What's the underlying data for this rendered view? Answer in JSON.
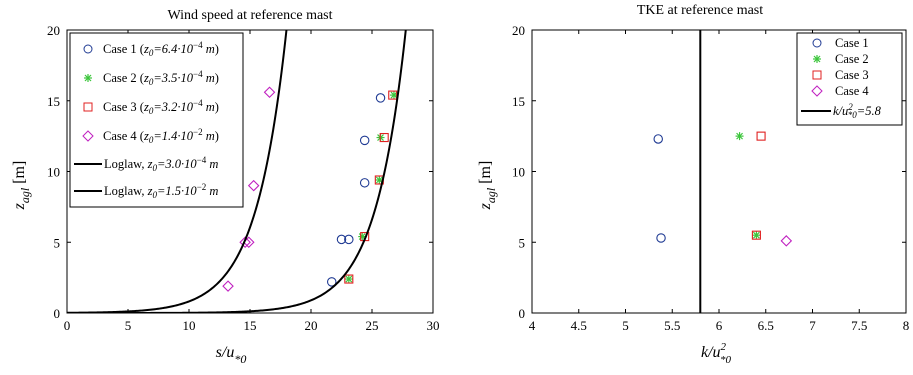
{
  "chart_data": [
    {
      "type": "scatter",
      "title": "Wind speed at reference mast",
      "xlabel": "s/u*0",
      "ylabel": "z_agl [m]",
      "xlim": [
        0,
        30
      ],
      "ylim": [
        0,
        20
      ],
      "xticks": [
        "0",
        "5",
        "10",
        "15",
        "20",
        "25",
        "30"
      ],
      "yticks": [
        "0",
        "5",
        "10",
        "15",
        "20"
      ],
      "grid": false,
      "legend_position": "top-left",
      "series": [
        {
          "name": "Case 1",
          "legend_text": "Case 1 (z0=6.4·10^-4 m)",
          "marker": "circle",
          "color": "#1f3a93",
          "points": [
            [
              21.7,
              2.2
            ],
            [
              22.5,
              5.2
            ],
            [
              23.1,
              5.2
            ],
            [
              24.4,
              9.2
            ],
            [
              24.4,
              12.2
            ],
            [
              25.7,
              15.2
            ]
          ]
        },
        {
          "name": "Case 2",
          "legend_text": "Case 2 (z0=3.5·10^-4 m)",
          "marker": "asterisk",
          "color": "#3cc63c",
          "points": [
            [
              23.1,
              2.4
            ],
            [
              24.2,
              5.4
            ],
            [
              25.6,
              9.4
            ],
            [
              25.7,
              12.4
            ],
            [
              26.8,
              15.4
            ]
          ]
        },
        {
          "name": "Case 3",
          "legend_text": "Case 3 (z0=3.2·10^-4 m)",
          "marker": "square",
          "color": "#e02020",
          "points": [
            [
              23.1,
              2.4
            ],
            [
              24.4,
              5.4
            ],
            [
              25.6,
              9.4
            ],
            [
              26.0,
              12.4
            ],
            [
              26.7,
              15.4
            ]
          ]
        },
        {
          "name": "Case 4",
          "legend_text": "Case 4 (z0=1.4·10^-2 m)",
          "marker": "diamond",
          "color": "#c020c0",
          "points": [
            [
              13.2,
              1.9
            ],
            [
              14.6,
              5.0
            ],
            [
              14.9,
              5.0
            ],
            [
              15.3,
              9.0
            ],
            [
              16.6,
              15.6
            ]
          ]
        },
        {
          "name": "Loglaw, z0=3.0·10^-4 m",
          "legend_text": "Loglaw, z0=3.0·10^-4 m",
          "marker": "line",
          "color": "#000000",
          "z0": 0.0003
        },
        {
          "name": "Loglaw, z0=1.5·10^-2 m",
          "legend_text": "Loglaw, z0=1.5·10^-2 m",
          "marker": "line",
          "color": "#000000",
          "z0": 0.015
        }
      ]
    },
    {
      "type": "scatter",
      "title": "TKE at reference mast",
      "xlabel": "k/u²*0",
      "ylabel": "z_agl [m]",
      "xlim": [
        4,
        8
      ],
      "ylim": [
        0,
        20
      ],
      "xticks": [
        "4",
        "4.5",
        "5",
        "5.5",
        "6",
        "6.5",
        "7",
        "7.5",
        "8"
      ],
      "yticks": [
        "0",
        "5",
        "10",
        "15",
        "20"
      ],
      "grid": false,
      "legend_position": "top-right",
      "series": [
        {
          "name": "Case 1",
          "marker": "circle",
          "color": "#1f3a93",
          "points": [
            [
              5.35,
              12.3
            ],
            [
              5.38,
              5.3
            ]
          ]
        },
        {
          "name": "Case 2",
          "marker": "asterisk",
          "color": "#3cc63c",
          "points": [
            [
              6.22,
              12.5
            ],
            [
              6.4,
              5.5
            ]
          ]
        },
        {
          "name": "Case 3",
          "marker": "square",
          "color": "#e02020",
          "points": [
            [
              6.45,
              12.5
            ],
            [
              6.4,
              5.5
            ]
          ]
        },
        {
          "name": "Case 4",
          "marker": "diamond",
          "color": "#c020c0",
          "points": [
            [
              6.72,
              5.1
            ]
          ]
        },
        {
          "name": "k/u²*0=5.8",
          "marker": "line",
          "color": "#000000",
          "xvalue": 5.8
        }
      ]
    }
  ]
}
